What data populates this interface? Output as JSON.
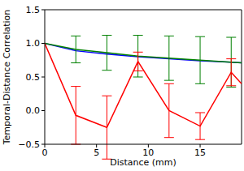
{
  "chart_data": {
    "type": "line",
    "x_label": "Distance (mm)",
    "y_label": "Temporal-Distance Correlation",
    "x": [
      0,
      3,
      6,
      9,
      12,
      15,
      18,
      19
    ],
    "series": [
      {
        "color": "#0000ff",
        "values": [
          1.0,
          0.89,
          0.84,
          0.8,
          0.77,
          0.74,
          0.72,
          0.71
        ]
      },
      {
        "color": "#008000",
        "values": [
          1.0,
          0.91,
          0.86,
          0.81,
          0.78,
          0.75,
          0.72,
          0.71
        ],
        "errors": [
          null,
          0.2,
          0.26,
          0.31,
          0.33,
          0.35,
          0.37,
          null
        ]
      },
      {
        "color": "#ff0000",
        "values": [
          1.0,
          -0.07,
          -0.25,
          0.73,
          0.0,
          -0.23,
          0.57,
          0.4
        ],
        "errors": [
          null,
          0.43,
          0.47,
          0.14,
          0.4,
          0.2,
          0.2,
          null
        ]
      }
    ],
    "xlim": [
      0,
      19
    ],
    "xticks": [
      0,
      5,
      10,
      15
    ],
    "ylim": [
      -0.5,
      1.5
    ],
    "yticks": [
      {
        "value": -0.5,
        "label": "−0.5"
      },
      {
        "value": 0.0,
        "label": "0.0"
      },
      {
        "value": 0.5,
        "label": "0.5"
      },
      {
        "value": 1.0,
        "label": "1.0"
      },
      {
        "value": 1.5,
        "label": "1.5"
      }
    ],
    "grid": false
  }
}
